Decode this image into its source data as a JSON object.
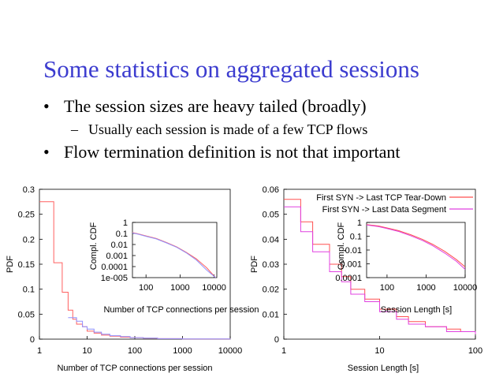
{
  "slide": {
    "title": "Some statistics on aggregated sessions",
    "bullets": [
      "The session sizes are heavy tailed (broadly)",
      "Usually each session is made of a few TCP flows",
      "Flow termination definition is not that important"
    ],
    "bullet_marker": "•",
    "sub_marker": "–"
  },
  "chart_data": [
    {
      "type": "line",
      "xlabel": "Number of TCP connections per session",
      "ylabel": "PDF",
      "xscale": "log",
      "xlim": [
        1,
        10000
      ],
      "ylim": [
        0,
        0.3
      ],
      "x_ticks": [
        "1",
        "10",
        "100",
        "1000",
        "10000"
      ],
      "y_ticks": [
        "0",
        "0.05",
        "0.1",
        "0.15",
        "0.2",
        "0.25",
        "0.3"
      ],
      "series": [
        {
          "color": "#ff6060",
          "x": [
            1,
            2,
            3,
            4,
            5,
            6,
            8,
            10,
            14,
            20,
            30,
            50,
            80,
            150,
            300,
            1000,
            10000
          ],
          "y": [
            0.275,
            0.153,
            0.094,
            0.058,
            0.04,
            0.03,
            0.025,
            0.016,
            0.012,
            0.008,
            0.006,
            0.004,
            0.003,
            0.002,
            0.001,
            0.0005,
            0.0002
          ]
        },
        {
          "color": "#9090ff",
          "x": [
            4,
            6,
            8,
            10,
            14,
            20,
            30,
            50,
            80,
            150,
            300,
            1000,
            10000
          ],
          "y": [
            0.043,
            0.036,
            0.025,
            0.02,
            0.014,
            0.01,
            0.007,
            0.005,
            0.003,
            0.002,
            0.001,
            0.0005,
            0.0002
          ]
        }
      ],
      "inset": {
        "type": "line",
        "xlabel": "Number of TCP connections per session",
        "ylabel": "Compl. CDF",
        "xscale": "log",
        "yscale": "log",
        "xlim": [
          40,
          12000
        ],
        "ylim": [
          1e-05,
          1
        ],
        "x_ticks": [
          "100",
          "1000",
          "10000"
        ],
        "y_ticks": [
          "1",
          "0.1",
          "0.01",
          "0.001",
          "0.0001",
          "1e-005"
        ],
        "series": [
          {
            "color": "#ff6060",
            "x": [
              40,
              60,
              100,
              200,
              400,
              800,
              1500,
              3000,
              6000,
              11000
            ],
            "y": [
              0.12,
              0.09,
              0.06,
              0.035,
              0.015,
              0.006,
              0.002,
              0.0005,
              8e-05,
              1e-05
            ]
          },
          {
            "color": "#9090ff",
            "x": [
              40,
              60,
              100,
              200,
              400,
              800,
              1500,
              3000,
              6000,
              11000
            ],
            "y": [
              0.11,
              0.085,
              0.055,
              0.032,
              0.014,
              0.0055,
              0.0018,
              0.0004,
              5e-05,
              1e-05
            ]
          }
        ]
      }
    },
    {
      "type": "line",
      "xlabel": "Session Length [s]",
      "ylabel": "PDF",
      "xscale": "log",
      "xlim": [
        1,
        100
      ],
      "ylim": [
        0,
        0.06
      ],
      "x_ticks": [
        "1",
        "10",
        "100"
      ],
      "y_ticks": [
        "0",
        "0.01",
        "0.02",
        "0.03",
        "0.04",
        "0.05",
        "0.06"
      ],
      "legend": [
        {
          "name": "First SYN -> Last TCP Tear-Down",
          "color": "#ff5050"
        },
        {
          "name": "First SYN -> Last Data Segment",
          "color": "#e040e0"
        }
      ],
      "series": [
        {
          "name": "First SYN -> Last TCP Tear-Down",
          "color": "#ff5050",
          "x": [
            1,
            1.5,
            2,
            3,
            4,
            5,
            7,
            10,
            15,
            20,
            30,
            50,
            70,
            100
          ],
          "y": [
            0.056,
            0.047,
            0.038,
            0.03,
            0.025,
            0.02,
            0.016,
            0.012,
            0.009,
            0.007,
            0.005,
            0.004,
            0.003,
            0.002
          ]
        },
        {
          "name": "First SYN -> Last Data Segment",
          "color": "#e040e0",
          "x": [
            1,
            1.5,
            2,
            3,
            4,
            5,
            7,
            10,
            15,
            20,
            30,
            50,
            70,
            100
          ],
          "y": [
            0.053,
            0.043,
            0.035,
            0.027,
            0.023,
            0.018,
            0.015,
            0.011,
            0.008,
            0.006,
            0.005,
            0.003,
            0.003,
            0.002
          ]
        }
      ],
      "inset": {
        "type": "line",
        "xlabel": "Session Length [s]",
        "ylabel": "Compl. CDF",
        "xscale": "log",
        "yscale": "log",
        "xlim": [
          30,
          10000
        ],
        "ylim": [
          0.0001,
          1
        ],
        "x_ticks": [
          "100",
          "1000",
          "10000"
        ],
        "y_ticks": [
          "1",
          "0.1",
          "0.01",
          "0.001",
          "0.0001"
        ],
        "series": [
          {
            "color": "#ff5050",
            "x": [
              30,
              60,
              100,
              200,
              400,
              800,
              1500,
              3000,
              6000,
              10000
            ],
            "y": [
              0.7,
              0.55,
              0.4,
              0.25,
              0.13,
              0.06,
              0.025,
              0.008,
              0.002,
              0.0006
            ]
          },
          {
            "color": "#e040e0",
            "x": [
              30,
              60,
              100,
              200,
              400,
              800,
              1500,
              3000,
              6000,
              10000
            ],
            "y": [
              0.65,
              0.5,
              0.36,
              0.22,
              0.11,
              0.05,
              0.02,
              0.006,
              0.0015,
              0.0004
            ]
          }
        ]
      }
    }
  ]
}
